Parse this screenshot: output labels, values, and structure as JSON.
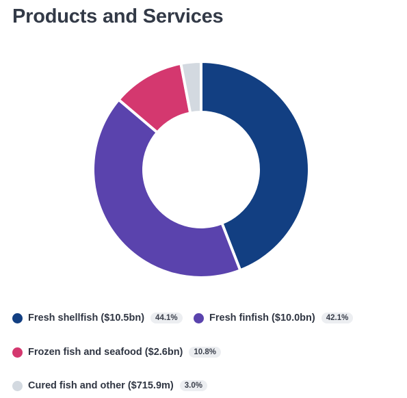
{
  "page": {
    "title": "Products and Services"
  },
  "chart_data": {
    "type": "pie",
    "variant": "donut",
    "title": "Products and Services",
    "segments": [
      {
        "label": "Fresh shellfish",
        "amount": "($10.5bn)",
        "value": 44.1,
        "percent_label": "44.1%",
        "color": "#123f82"
      },
      {
        "label": "Fresh finfish",
        "amount": "($10.0bn)",
        "value": 42.1,
        "percent_label": "42.1%",
        "color": "#5a43ad"
      },
      {
        "label": "Frozen fish and seafood",
        "amount": "($2.6bn)",
        "value": 10.8,
        "percent_label": "10.8%",
        "color": "#d4386f"
      },
      {
        "label": "Cured fish and other",
        "amount": "($715.9m)",
        "value": 3.0,
        "percent_label": "3.0%",
        "color": "#d3d9e0"
      }
    ],
    "legend_position": "bottom",
    "start_angle": "top, clockwise"
  }
}
